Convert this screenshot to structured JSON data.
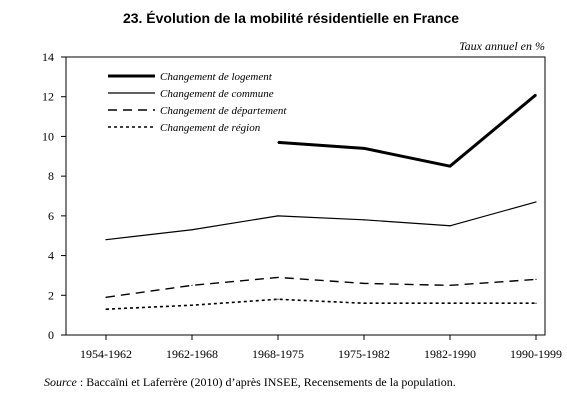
{
  "chart_data": {
    "type": "line",
    "title": "23. Évolution de la mobilité résidentielle en France",
    "unit_label": "Taux annuel en %",
    "ylim": [
      0,
      14
    ],
    "yticks": [
      "0",
      "2",
      "4",
      "6",
      "8",
      "10",
      "12",
      "14"
    ],
    "categories": [
      "1954-1962",
      "1962-1968",
      "1968-1975",
      "1975-1982",
      "1982-1990",
      "1990-1999"
    ],
    "grid": false,
    "legend_position": "top-left",
    "series": [
      {
        "name": "Changement de logement",
        "style": "thick-solid",
        "values": [
          null,
          null,
          9.7,
          9.4,
          8.5,
          12.1
        ]
      },
      {
        "name": "Changement de commune",
        "style": "solid",
        "values": [
          4.8,
          5.3,
          6.0,
          5.8,
          5.5,
          6.7
        ]
      },
      {
        "name": "Changement de département",
        "style": "dashed",
        "values": [
          1.9,
          2.5,
          2.9,
          2.6,
          2.5,
          2.8
        ]
      },
      {
        "name": "Changement de région",
        "style": "dotted",
        "values": [
          1.3,
          1.5,
          1.8,
          1.6,
          1.6,
          1.6
        ]
      }
    ],
    "source_label": "Source",
    "source_text": " : Baccaïni et Laferrère (2010) d’après INSEE, Recensements de la population."
  }
}
